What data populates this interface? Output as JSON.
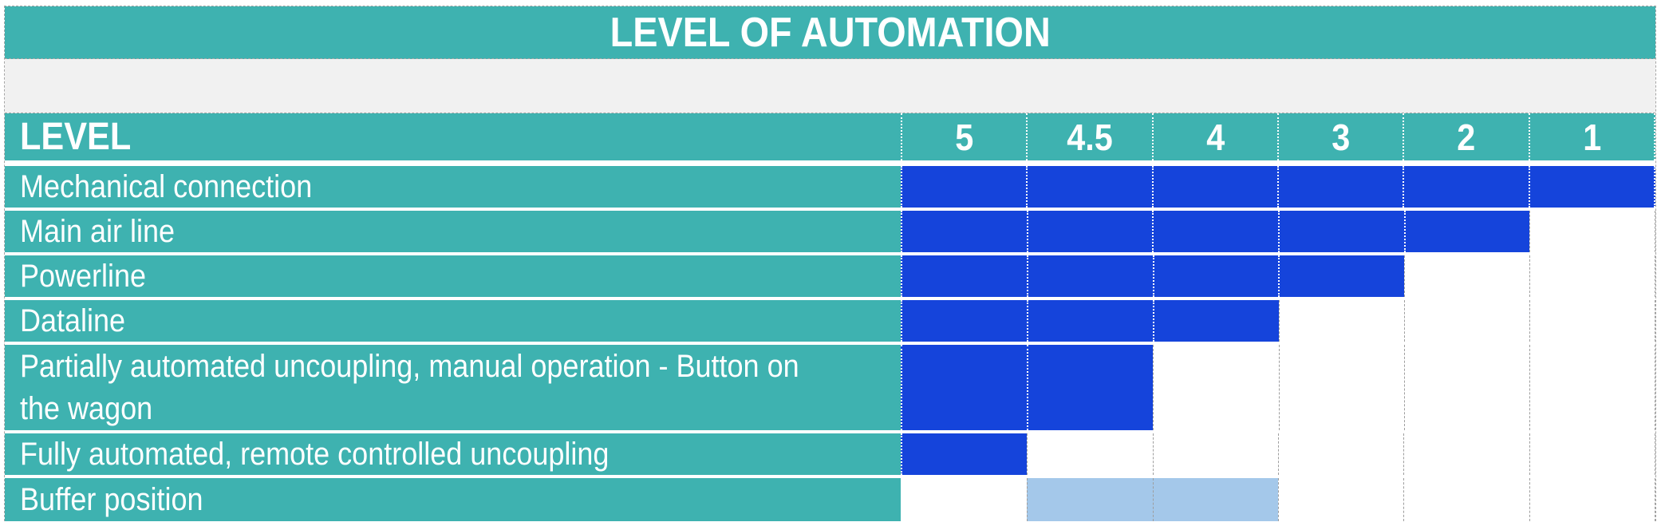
{
  "title": "LEVEL OF AUTOMATION",
  "header": {
    "label": "LEVEL",
    "levels": [
      "5",
      "4.5",
      "4",
      "3",
      "2",
      "1"
    ]
  },
  "rows": [
    {
      "label": "Mechanical connection",
      "cells": [
        "blue",
        "blue",
        "blue",
        "blue",
        "blue",
        "blue"
      ],
      "tall": false
    },
    {
      "label": "Main air line",
      "cells": [
        "blue",
        "blue",
        "blue",
        "blue",
        "blue",
        "empty"
      ],
      "tall": false
    },
    {
      "label": "Powerline",
      "cells": [
        "blue",
        "blue",
        "blue",
        "blue",
        "empty",
        "empty"
      ],
      "tall": false
    },
    {
      "label": "Dataline",
      "cells": [
        "blue",
        "blue",
        "blue",
        "empty",
        "empty",
        "empty"
      ],
      "tall": false
    },
    {
      "label": "Partially automated uncoupling, manual operation - Button on\nthe wagon",
      "cells": [
        "blue",
        "blue",
        "empty",
        "empty",
        "empty",
        "empty"
      ],
      "tall": true
    },
    {
      "label": "Fully automated, remote controlled uncoupling",
      "cells": [
        "blue",
        "empty",
        "empty",
        "empty",
        "empty",
        "empty"
      ],
      "tall": false
    },
    {
      "label": "Buffer position",
      "cells": [
        "empty",
        "light",
        "light",
        "empty",
        "empty",
        "empty"
      ],
      "tall": false
    }
  ],
  "colors": {
    "teal": "#3EB2B0",
    "filled_blue": "#1544DB",
    "highlight_light_blue": "#A4C8EA",
    "spacer_gray": "#F1F1F1",
    "text_white": "#FFFFFF",
    "gridline_gray": "#9E9E9E"
  },
  "chart_data": {
    "type": "table",
    "title": "LEVEL OF AUTOMATION",
    "column_header_label": "LEVEL",
    "columns": [
      "5",
      "4.5",
      "4",
      "3",
      "2",
      "1"
    ],
    "rows": [
      {
        "label": "Mechanical connection",
        "filled_levels": [
          "5",
          "4.5",
          "4",
          "3",
          "2",
          "1"
        ],
        "fill_style": "blue"
      },
      {
        "label": "Main air line",
        "filled_levels": [
          "5",
          "4.5",
          "4",
          "3",
          "2"
        ],
        "fill_style": "blue"
      },
      {
        "label": "Powerline",
        "filled_levels": [
          "5",
          "4.5",
          "4",
          "3"
        ],
        "fill_style": "blue"
      },
      {
        "label": "Dataline",
        "filled_levels": [
          "5",
          "4.5",
          "4"
        ],
        "fill_style": "blue"
      },
      {
        "label": "Partially automated uncoupling, manual operation - Button on the wagon",
        "filled_levels": [
          "5",
          "4.5"
        ],
        "fill_style": "blue"
      },
      {
        "label": "Fully automated, remote controlled uncoupling",
        "filled_levels": [
          "5"
        ],
        "fill_style": "blue"
      },
      {
        "label": "Buffer position",
        "filled_levels": [
          "4.5",
          "4"
        ],
        "fill_style": "light_blue"
      }
    ],
    "grid": "dotted",
    "legend_position": "none"
  }
}
